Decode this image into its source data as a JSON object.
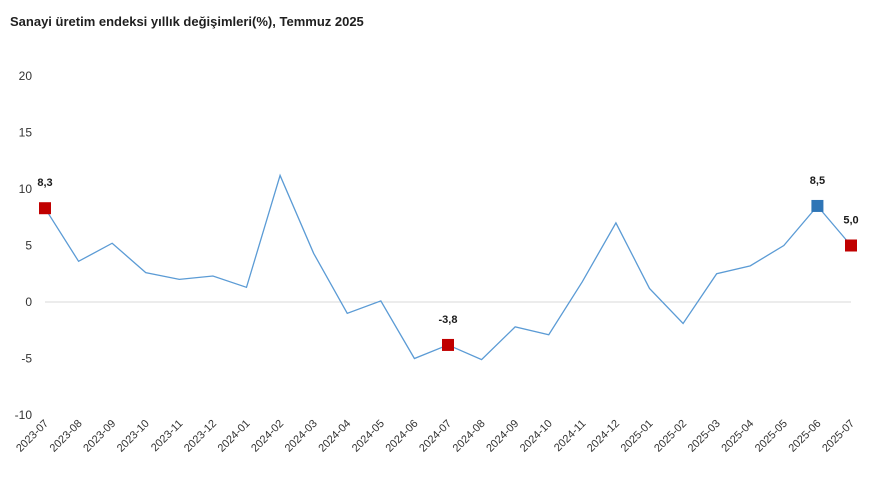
{
  "chart_data": {
    "type": "line",
    "title": "Sanayi üretim endeksi yıllık değişimleri(%), Temmuz 2025",
    "xlabel": "",
    "ylabel": "",
    "ylim": [
      -10,
      20
    ],
    "yticks": [
      20,
      15,
      10,
      5,
      0,
      -5,
      -10
    ],
    "grid": false,
    "categories": [
      "2023-07",
      "2023-08",
      "2023-09",
      "2023-10",
      "2023-11",
      "2023-12",
      "2024-01",
      "2024-02",
      "2024-03",
      "2024-04",
      "2024-05",
      "2024-06",
      "2024-07",
      "2024-08",
      "2024-09",
      "2024-10",
      "2024-11",
      "2024-12",
      "2025-01",
      "2025-02",
      "2025-03",
      "2025-04",
      "2025-05",
      "2025-06",
      "2025-07"
    ],
    "series": [
      {
        "values": [
          8.3,
          3.6,
          5.2,
          2.6,
          2.0,
          2.3,
          1.3,
          11.2,
          4.3,
          -1.0,
          0.1,
          -5.0,
          -3.8,
          -5.1,
          -2.2,
          -2.9,
          1.8,
          7.0,
          1.2,
          -1.9,
          2.5,
          3.2,
          5.0,
          8.5,
          5.0
        ],
        "color": "#5b9bd5"
      }
    ],
    "highlights": [
      {
        "category": "2023-07",
        "label": "8,3",
        "color": "#c00000"
      },
      {
        "category": "2024-07",
        "label": "-3,8",
        "color": "#c00000"
      },
      {
        "category": "2025-06",
        "label": "8,5",
        "color": "#2e75b6"
      },
      {
        "category": "2025-07",
        "label": "5,0",
        "color": "#c00000"
      }
    ],
    "axis_color": "#d9d9d9"
  }
}
